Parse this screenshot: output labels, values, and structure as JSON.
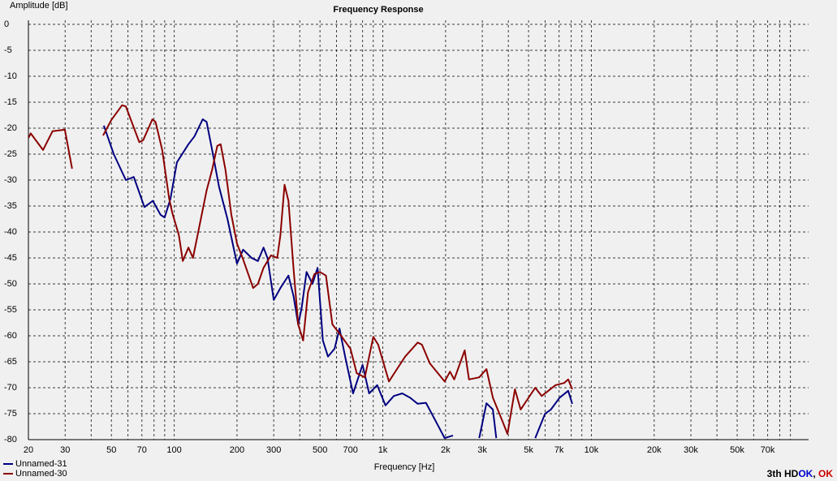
{
  "chart_data": {
    "type": "line",
    "title": "Frequency Response",
    "y_label": "Amplitude [dB]",
    "x_label": "Frequency [Hz]",
    "xscale": "log",
    "grid": true,
    "legend": "bottom-left",
    "xlim": [
      20,
      110000
    ],
    "ylim": [
      -80,
      0
    ],
    "xticks": [
      20,
      30,
      50,
      70,
      100,
      200,
      300,
      500,
      700,
      {
        "value": 1000,
        "label": "1k"
      },
      {
        "value": 2000,
        "label": "2k"
      },
      {
        "value": 3000,
        "label": "3k"
      },
      {
        "value": 5000,
        "label": "5k"
      },
      {
        "value": 7000,
        "label": "7k"
      },
      {
        "value": 10000,
        "label": "10k"
      },
      {
        "value": 20000,
        "label": "20k"
      },
      {
        "value": 30000,
        "label": "30k"
      },
      {
        "value": 50000,
        "label": "50k"
      },
      {
        "value": 70000,
        "label": "70k"
      }
    ],
    "x_minor_grid": [
      40,
      60,
      80,
      90,
      400,
      600,
      800,
      900,
      4000,
      6000,
      8000,
      9000,
      40000,
      60000,
      80000,
      90000
    ],
    "yticks": [
      0,
      -5,
      -10,
      -15,
      -20,
      -25,
      -30,
      -35,
      -40,
      -45,
      -50,
      -55,
      -60,
      -65,
      -70,
      -75,
      -80
    ],
    "series": [
      {
        "name": "Unnamed-31",
        "color": "#000080",
        "x": [
          46,
          51.3,
          58.6,
          64,
          72,
          79,
          86,
          90,
          96,
          103,
          117,
          125,
          137,
          143,
          152,
          164,
          180,
          200,
          214,
          235,
          252,
          268,
          280,
          300,
          323,
          353,
          373,
          393,
          408,
          431,
          460,
          487,
          516,
          546,
          587,
          620,
          660,
          720,
          800,
          860,
          940,
          1030,
          1130,
          1240,
          1350,
          1470,
          1610,
          1840,
          1980,
          2170,
          2500,
          2900,
          3140,
          3370,
          3500,
          4500,
          5380,
          6000,
          6400,
          7050,
          7740,
          8100
        ],
        "values": [
          -19.5,
          -25,
          -30,
          -29.4,
          -35.2,
          -34,
          -36.7,
          -37.2,
          -33.6,
          -26.6,
          -23.1,
          -21.6,
          -18.3,
          -18.8,
          -24.2,
          -31.3,
          -37.5,
          -46.1,
          -43.4,
          -45,
          -45.6,
          -43,
          -45,
          -53.1,
          -50.8,
          -48.4,
          -52.3,
          -57.8,
          -54.7,
          -47.7,
          -50,
          -46.9,
          -60.9,
          -64,
          -62.5,
          -58.6,
          -64,
          -71.1,
          -65.6,
          -71.1,
          -69.5,
          -73.4,
          -71.6,
          -71.1,
          -71.9,
          -73.1,
          -72.9,
          -77.3,
          -79.7,
          -79.2,
          null,
          -79.7,
          -73,
          -74.2,
          -79.7,
          null,
          -79.7,
          -75,
          -74.2,
          -71.9,
          -70.6,
          -73.1
        ]
      },
      {
        "name": "Unnamed-30",
        "color": "#8b0000",
        "x": [
          20,
          20.5,
          23.5,
          26.1,
          29.9,
          32.4,
          40,
          45.6,
          50,
          56.2,
          58.6,
          68,
          71,
          78.6,
          81.4,
          87.6,
          94.6,
          97.9,
          105.3,
          110,
          117,
          123,
          143,
          152,
          161,
          167,
          176,
          188,
          200,
          214,
          239,
          252,
          268,
          291,
          312,
          323,
          338,
          353,
          373,
          393,
          415,
          438,
          470,
          500,
          534,
          573,
          616,
          700,
          750,
          820,
          900,
          950,
          1070,
          1170,
          1280,
          1470,
          1540,
          1680,
          1980,
          2100,
          2200,
          2470,
          2590,
          2900,
          3140,
          3370,
          3760,
          3960,
          4300,
          4580,
          5380,
          5780,
          6730,
          7400,
          7740,
          8100
        ],
        "values": [
          -21.9,
          -21,
          -24.2,
          -20.6,
          -20.3,
          -27.8,
          null,
          -21.4,
          -18.4,
          -15.6,
          -15.8,
          -22.7,
          -22.3,
          -18.3,
          -18.8,
          -24.2,
          -33.6,
          -36.3,
          -40.6,
          -45.6,
          -43,
          -45,
          -32,
          -28,
          -23.4,
          -23.1,
          -28,
          -36.7,
          -42.2,
          -45.3,
          -50.8,
          -50,
          -46.9,
          -44.5,
          -45,
          -40.6,
          -30.9,
          -34,
          -46.9,
          -57.8,
          -60.9,
          -51.6,
          -48.1,
          -47.7,
          -48.4,
          -57.8,
          -59.4,
          -62.5,
          -67.2,
          -68,
          -60.2,
          -61.7,
          -68.8,
          -66.4,
          -64,
          -61.3,
          -61.7,
          -65.3,
          -68.8,
          -66.9,
          -68.4,
          -62.8,
          -68.4,
          -68,
          -66.4,
          -71.9,
          -76.6,
          -78.9,
          -70.3,
          -74.2,
          -70,
          -71.6,
          -69.5,
          -69.1,
          -68.4,
          -70.3
        ]
      }
    ],
    "status": {
      "prefix": "3th HD",
      "first": "OK",
      "separator": ", ",
      "second": "OK"
    }
  }
}
